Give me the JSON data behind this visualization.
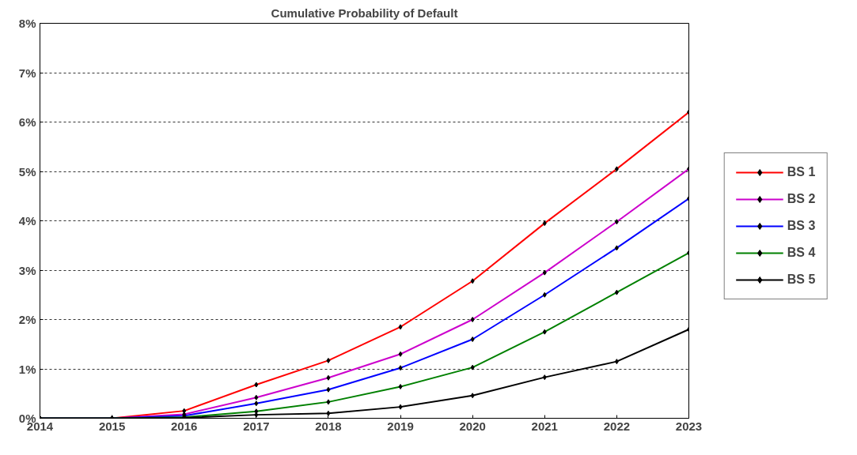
{
  "chart_data": {
    "type": "line",
    "title": "Cumulative Probability of Default",
    "x": [
      2014,
      2015,
      2016,
      2017,
      2018,
      2019,
      2020,
      2021,
      2022,
      2023
    ],
    "series": [
      {
        "name": "BS 1",
        "color": "#ff0000",
        "values": [
          0,
          0,
          0.15,
          0.68,
          1.17,
          1.85,
          2.78,
          3.95,
          5.05,
          6.2
        ]
      },
      {
        "name": "BS 2",
        "color": "#cc00cc",
        "values": [
          0,
          0,
          0.08,
          0.42,
          0.82,
          1.3,
          2.0,
          2.95,
          3.98,
          5.05
        ]
      },
      {
        "name": "BS 3",
        "color": "#0000ff",
        "values": [
          0,
          0,
          0.05,
          0.3,
          0.58,
          1.02,
          1.6,
          2.5,
          3.45,
          4.45
        ]
      },
      {
        "name": "BS 4",
        "color": "#008000",
        "values": [
          0,
          0,
          0.02,
          0.14,
          0.33,
          0.64,
          1.03,
          1.75,
          2.55,
          3.35
        ]
      },
      {
        "name": "BS 5",
        "color": "#000000",
        "values": [
          0,
          0,
          0.01,
          0.07,
          0.1,
          0.23,
          0.46,
          0.83,
          1.15,
          1.8
        ]
      }
    ],
    "xlim": [
      2014,
      2023
    ],
    "xticks": [
      2014,
      2015,
      2016,
      2017,
      2018,
      2019,
      2020,
      2021,
      2022,
      2023
    ],
    "ylim": [
      0,
      8
    ],
    "yticks": [
      {
        "value": 0,
        "label": "0%"
      },
      {
        "value": 1,
        "label": "1%"
      },
      {
        "value": 2,
        "label": "2%"
      },
      {
        "value": 3,
        "label": "3%"
      },
      {
        "value": 4,
        "label": "4%"
      },
      {
        "value": 5,
        "label": "5%"
      },
      {
        "value": 6,
        "label": "6%"
      },
      {
        "value": 7,
        "label": "7%"
      },
      {
        "value": 8,
        "label": "8%"
      }
    ],
    "grid": "y",
    "legend": "right",
    "marker": "diamond",
    "line_style": "solid"
  }
}
